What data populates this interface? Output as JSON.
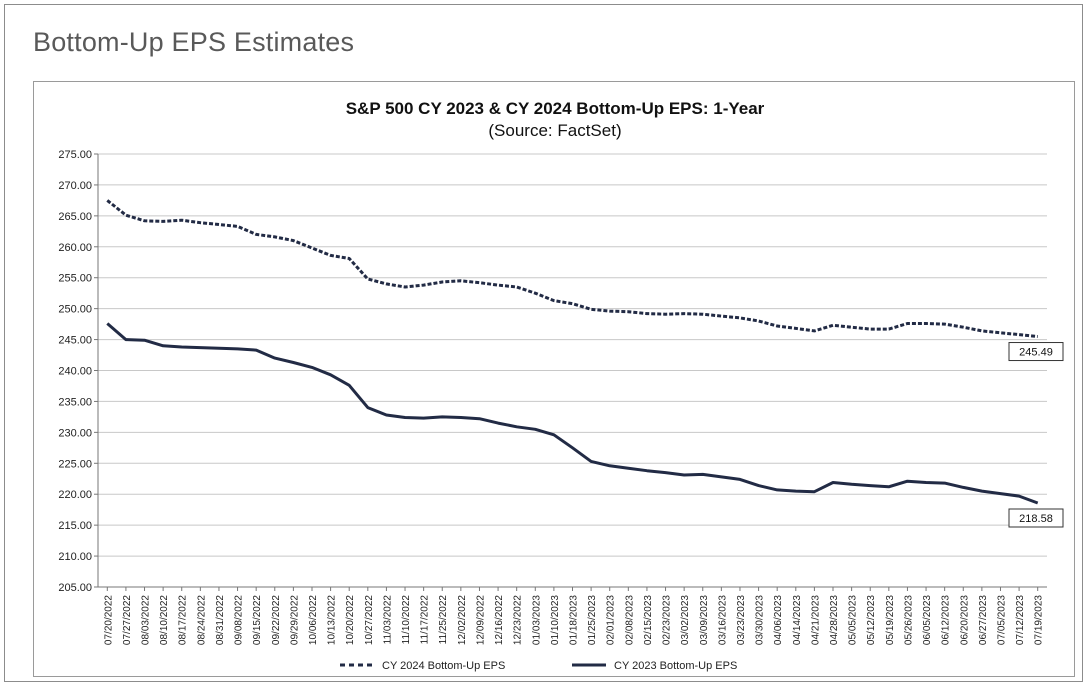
{
  "page": {
    "heading": "Bottom-Up EPS Estimates"
  },
  "chart_data": {
    "type": "line",
    "title": "S&P 500 CY 2023 & CY 2024 Bottom-Up EPS: 1-Year",
    "subtitle": "(Source: FactSet)",
    "xlabel": "",
    "ylabel": "",
    "ylim": [
      205,
      275
    ],
    "y_ticks": [
      "275.00",
      "270.00",
      "265.00",
      "260.00",
      "255.00",
      "250.00",
      "245.00",
      "240.00",
      "235.00",
      "230.00",
      "225.00",
      "220.00",
      "215.00",
      "210.00",
      "205.00"
    ],
    "x_ticks": [
      "07/20/2022",
      "07/27/2022",
      "08/03/2022",
      "08/10/2022",
      "08/17/2022",
      "08/24/2022",
      "08/31/2022",
      "09/08/2022",
      "09/15/2022",
      "09/22/2022",
      "09/29/2022",
      "10/06/2022",
      "10/13/2022",
      "10/20/2022",
      "10/27/2022",
      "11/03/2022",
      "11/10/2022",
      "11/17/2022",
      "11/25/2022",
      "12/02/2022",
      "12/09/2022",
      "12/16/2022",
      "12/23/2022",
      "01/03/2023",
      "01/10/2023",
      "01/18/2023",
      "01/25/2023",
      "02/01/2023",
      "02/08/2023",
      "02/15/2023",
      "02/23/2023",
      "03/02/2023",
      "03/09/2023",
      "03/16/2023",
      "03/23/2023",
      "03/30/2023",
      "04/06/2023",
      "04/14/2023",
      "04/21/2023",
      "04/28/2023",
      "05/05/2023",
      "05/12/2023",
      "05/19/2023",
      "05/26/2023",
      "06/05/2023",
      "06/12/2023",
      "06/20/2023",
      "06/27/2023",
      "07/05/2023",
      "07/12/2023",
      "07/19/2023"
    ],
    "grid": true,
    "legend": "bottom",
    "colors": {
      "line": "#222b45",
      "grid": "#c8c8c8"
    },
    "series": [
      {
        "name": "CY 2024 Bottom-Up EPS",
        "style": "dashed",
        "end_label": "245.49",
        "values": [
          267.5,
          265.1,
          264.2,
          264.1,
          264.3,
          263.9,
          263.6,
          263.3,
          262.0,
          261.6,
          261.0,
          259.8,
          258.6,
          258.1,
          254.8,
          254.0,
          253.5,
          253.8,
          254.3,
          254.5,
          254.2,
          253.8,
          253.5,
          252.5,
          251.3,
          250.8,
          249.9,
          249.6,
          249.5,
          249.2,
          249.1,
          249.2,
          249.1,
          248.8,
          248.5,
          248.0,
          247.2,
          246.8,
          246.4,
          247.3,
          247.0,
          246.7,
          246.7,
          247.6,
          247.6,
          247.5,
          247.0,
          246.4,
          246.1,
          245.8,
          245.49
        ]
      },
      {
        "name": "CY 2023 Bottom-Up EPS",
        "style": "solid",
        "end_label": "218.58",
        "values": [
          247.6,
          245.0,
          244.9,
          244.0,
          243.8,
          243.7,
          243.6,
          243.5,
          243.3,
          242.0,
          241.3,
          240.5,
          239.3,
          237.6,
          234.0,
          232.8,
          232.4,
          232.3,
          232.5,
          232.4,
          232.2,
          231.5,
          230.9,
          230.5,
          229.6,
          227.5,
          225.3,
          224.6,
          224.2,
          223.8,
          223.5,
          223.1,
          223.2,
          222.8,
          222.4,
          221.4,
          220.7,
          220.5,
          220.4,
          221.9,
          221.6,
          221.4,
          221.2,
          222.1,
          221.9,
          221.8,
          221.1,
          220.5,
          220.1,
          219.7,
          218.58
        ]
      }
    ]
  }
}
